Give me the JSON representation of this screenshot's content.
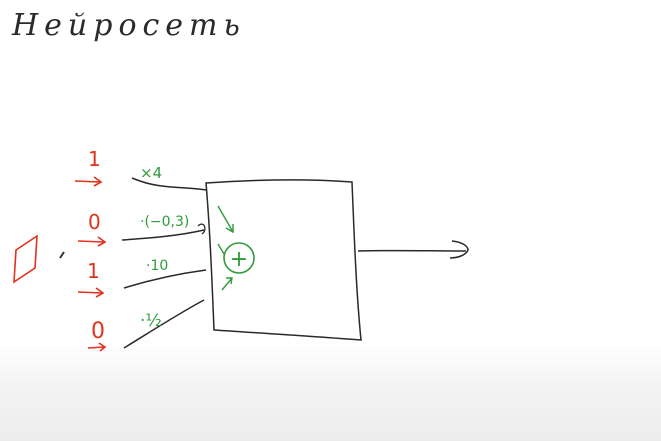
{
  "title": "Нейросеть",
  "colors": {
    "ink": "#2a2a2a",
    "inputs": "#e0321d",
    "weights": "#2f9a3a"
  },
  "inputs": [
    "1",
    "0",
    "1",
    "0"
  ],
  "weights": [
    "×4",
    "·(−0,3)",
    "·10",
    "·½"
  ],
  "sum_symbol": "+"
}
